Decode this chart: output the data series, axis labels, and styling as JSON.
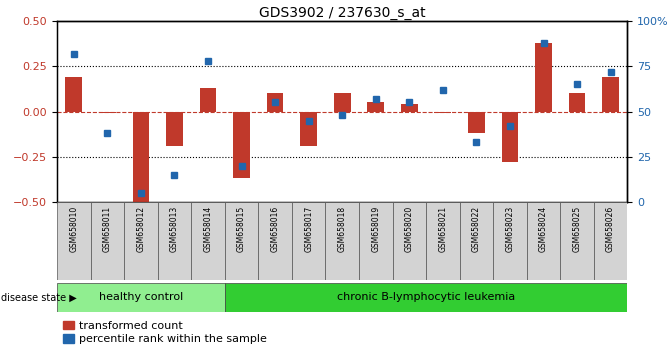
{
  "title": "GDS3902 / 237630_s_at",
  "samples": [
    "GSM658010",
    "GSM658011",
    "GSM658012",
    "GSM658013",
    "GSM658014",
    "GSM658015",
    "GSM658016",
    "GSM658017",
    "GSM658018",
    "GSM658019",
    "GSM658020",
    "GSM658021",
    "GSM658022",
    "GSM658023",
    "GSM658024",
    "GSM658025",
    "GSM658026"
  ],
  "red_values": [
    0.19,
    -0.01,
    -0.5,
    -0.19,
    0.13,
    -0.37,
    0.1,
    -0.19,
    0.1,
    0.05,
    0.04,
    -0.01,
    -0.12,
    -0.28,
    0.38,
    0.1,
    0.19
  ],
  "blue_values": [
    82,
    38,
    5,
    15,
    78,
    20,
    55,
    45,
    48,
    57,
    55,
    62,
    33,
    42,
    88,
    65,
    72
  ],
  "healthy_count": 5,
  "healthy_label": "healthy control",
  "disease_label": "chronic B-lymphocytic leukemia",
  "disease_state_label": "disease state",
  "legend_red": "transformed count",
  "legend_blue": "percentile rank within the sample",
  "ylim_left": [
    -0.5,
    0.5
  ],
  "ylim_right": [
    0,
    100
  ],
  "yticks_left": [
    -0.5,
    -0.25,
    0.0,
    0.25,
    0.5
  ],
  "yticks_right": [
    0,
    25,
    50,
    75,
    100
  ],
  "red_color": "#c0392b",
  "blue_color": "#2166ac",
  "bar_width": 0.5,
  "tick_bg": "#d3d3d3",
  "healthy_bg": "#90EE90",
  "disease_bg": "#32CD32"
}
